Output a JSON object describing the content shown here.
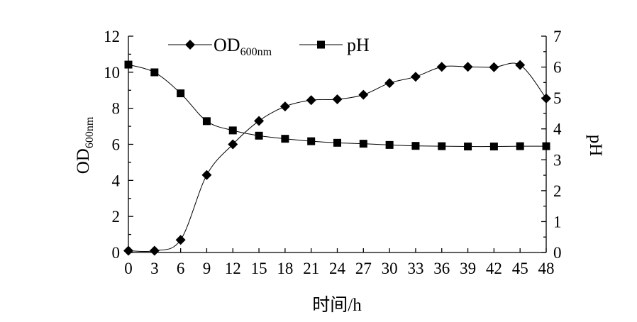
{
  "chart_data": {
    "type": "line",
    "xlabel": "时间/h",
    "ylabel": "OD",
    "ylabel_sub": "600nm",
    "y2label": "pH",
    "xlim": [
      0,
      48
    ],
    "ylim": [
      0,
      12
    ],
    "y2lim": [
      0,
      7
    ],
    "xticks": [
      "0",
      "3",
      "6",
      "9",
      "12",
      "15",
      "18",
      "21",
      "24",
      "27",
      "30",
      "33",
      "36",
      "39",
      "42",
      "45",
      "48"
    ],
    "yticks": [
      "0",
      "2",
      "4",
      "6",
      "8",
      "10",
      "12"
    ],
    "y2ticks": [
      "0",
      "1",
      "2",
      "3",
      "4",
      "5",
      "6",
      "7"
    ],
    "legend": "top-center",
    "grid": false,
    "series": [
      {
        "name": "OD",
        "name_sub": "600nm",
        "axis": "left",
        "marker": "diamond",
        "x": [
          0,
          3,
          6,
          9,
          12,
          15,
          18,
          21,
          24,
          27,
          30,
          33,
          36,
          39,
          42,
          45,
          48
        ],
        "values": [
          0.1,
          0.1,
          0.7,
          4.3,
          6.0,
          7.3,
          8.1,
          8.45,
          8.5,
          8.75,
          9.4,
          9.75,
          10.3,
          10.3,
          10.28,
          10.4,
          8.55
        ]
      },
      {
        "name": "pH",
        "axis": "right",
        "marker": "square",
        "x": [
          0,
          3,
          6,
          9,
          12,
          15,
          18,
          21,
          24,
          27,
          30,
          33,
          36,
          39,
          42,
          45,
          48
        ],
        "values": [
          6.08,
          5.83,
          5.15,
          4.25,
          3.95,
          3.78,
          3.68,
          3.6,
          3.55,
          3.52,
          3.48,
          3.45,
          3.44,
          3.43,
          3.43,
          3.44,
          3.44
        ]
      }
    ]
  }
}
